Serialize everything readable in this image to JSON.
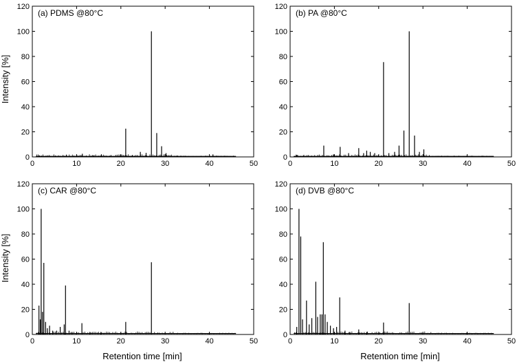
{
  "figure": {
    "x_axis_label": "Retention time [min]",
    "y_axis_label": "Intensity [%]"
  },
  "chart_data": [
    {
      "type": "line",
      "title": "(a) PDMS @80°C",
      "xlabel": "",
      "ylabel": "Intensity [%]",
      "xlim": [
        0,
        50
      ],
      "ylim": [
        0,
        120
      ],
      "xticks": [
        0,
        10,
        20,
        30,
        40,
        50
      ],
      "yticks": [
        0,
        20,
        40,
        60,
        80,
        100,
        120
      ],
      "trace_end": 46,
      "baseline": 0.5,
      "peaks": [
        {
          "x": 1.6,
          "y": 1.2
        },
        {
          "x": 5.3,
          "y": 0.8
        },
        {
          "x": 7.7,
          "y": 1.8
        },
        {
          "x": 11.3,
          "y": 2.5
        },
        {
          "x": 13.8,
          "y": 1.0
        },
        {
          "x": 15.6,
          "y": 2.1
        },
        {
          "x": 17.5,
          "y": 1.0
        },
        {
          "x": 19.9,
          "y": 1.4
        },
        {
          "x": 21.1,
          "y": 22.5
        },
        {
          "x": 22.6,
          "y": 1.5
        },
        {
          "x": 24.4,
          "y": 4.0
        },
        {
          "x": 25.7,
          "y": 3.2
        },
        {
          "x": 26.9,
          "y": 100
        },
        {
          "x": 28.1,
          "y": 19.0
        },
        {
          "x": 29.2,
          "y": 8.5
        },
        {
          "x": 30.2,
          "y": 3.0
        },
        {
          "x": 32.6,
          "y": 1.0
        },
        {
          "x": 40.8,
          "y": 2.0
        }
      ]
    },
    {
      "type": "line",
      "title": "(b) PA @80°C",
      "xlabel": "",
      "ylabel": "",
      "xlim": [
        0,
        50
      ],
      "ylim": [
        0,
        120
      ],
      "xticks": [
        0,
        10,
        20,
        30,
        40,
        50
      ],
      "yticks": [
        0,
        20,
        40,
        60,
        80,
        100,
        120
      ],
      "trace_end": 46,
      "baseline": 0.5,
      "peaks": [
        {
          "x": 1.5,
          "y": 1.5
        },
        {
          "x": 3.0,
          "y": 1.0
        },
        {
          "x": 7.6,
          "y": 9.0
        },
        {
          "x": 9.8,
          "y": 2.0
        },
        {
          "x": 11.3,
          "y": 8.0
        },
        {
          "x": 13.2,
          "y": 3.0
        },
        {
          "x": 15.5,
          "y": 7.0
        },
        {
          "x": 16.6,
          "y": 3.0
        },
        {
          "x": 17.3,
          "y": 5.0
        },
        {
          "x": 18.1,
          "y": 4.0
        },
        {
          "x": 19.1,
          "y": 3.0
        },
        {
          "x": 21.1,
          "y": 75.5
        },
        {
          "x": 22.3,
          "y": 3.0
        },
        {
          "x": 23.6,
          "y": 4.0
        },
        {
          "x": 24.6,
          "y": 9.0
        },
        {
          "x": 25.7,
          "y": 21.0
        },
        {
          "x": 26.9,
          "y": 100
        },
        {
          "x": 28.1,
          "y": 17.0
        },
        {
          "x": 29.2,
          "y": 4.0
        },
        {
          "x": 30.2,
          "y": 6.0
        }
      ]
    },
    {
      "type": "line",
      "title": "(c) CAR @80°C",
      "xlabel": "Retention time [min]",
      "ylabel": "Intensity [%]",
      "xlim": [
        0,
        50
      ],
      "ylim": [
        0,
        120
      ],
      "xticks": [
        0,
        10,
        20,
        30,
        40,
        50
      ],
      "yticks": [
        0,
        20,
        40,
        60,
        80,
        100,
        120
      ],
      "trace_end": 46,
      "baseline": 0.8,
      "peaks": [
        {
          "x": 1.5,
          "y": 23.0
        },
        {
          "x": 1.8,
          "y": 12.0
        },
        {
          "x": 2.0,
          "y": 100
        },
        {
          "x": 2.3,
          "y": 18.0
        },
        {
          "x": 2.6,
          "y": 57.0
        },
        {
          "x": 3.0,
          "y": 10.0
        },
        {
          "x": 3.4,
          "y": 5.0
        },
        {
          "x": 3.9,
          "y": 7.0
        },
        {
          "x": 4.6,
          "y": 3.0
        },
        {
          "x": 5.5,
          "y": 3.0
        },
        {
          "x": 6.3,
          "y": 6.0
        },
        {
          "x": 7.2,
          "y": 8.0
        },
        {
          "x": 7.5,
          "y": 39.0
        },
        {
          "x": 8.3,
          "y": 3.0
        },
        {
          "x": 9.0,
          "y": 2.0
        },
        {
          "x": 11.2,
          "y": 9.0
        },
        {
          "x": 13.0,
          "y": 2.0
        },
        {
          "x": 15.5,
          "y": 2.0
        },
        {
          "x": 21.1,
          "y": 10.0
        },
        {
          "x": 26.9,
          "y": 57.5
        }
      ]
    },
    {
      "type": "line",
      "title": "(d) DVB @80°C",
      "xlabel": "Retention time [min]",
      "ylabel": "",
      "xlim": [
        0,
        50
      ],
      "ylim": [
        0,
        120
      ],
      "xticks": [
        0,
        10,
        20,
        30,
        40,
        50
      ],
      "yticks": [
        0,
        20,
        40,
        60,
        80,
        100,
        120
      ],
      "trace_end": 46,
      "baseline": 0.8,
      "peaks": [
        {
          "x": 1.5,
          "y": 6.0
        },
        {
          "x": 2.0,
          "y": 100
        },
        {
          "x": 2.4,
          "y": 78.0
        },
        {
          "x": 2.8,
          "y": 12.0
        },
        {
          "x": 3.7,
          "y": 27.0
        },
        {
          "x": 4.3,
          "y": 8.0
        },
        {
          "x": 4.9,
          "y": 13.0
        },
        {
          "x": 5.8,
          "y": 42.0
        },
        {
          "x": 6.2,
          "y": 14.0
        },
        {
          "x": 6.8,
          "y": 16.0
        },
        {
          "x": 7.2,
          "y": 16.0
        },
        {
          "x": 7.5,
          "y": 73.5
        },
        {
          "x": 7.9,
          "y": 16.0
        },
        {
          "x": 8.4,
          "y": 10.0
        },
        {
          "x": 9.1,
          "y": 7.0
        },
        {
          "x": 9.8,
          "y": 5.0
        },
        {
          "x": 10.5,
          "y": 6.0
        },
        {
          "x": 11.2,
          "y": 29.5
        },
        {
          "x": 12.4,
          "y": 3.0
        },
        {
          "x": 13.5,
          "y": 2.0
        },
        {
          "x": 15.5,
          "y": 4.0
        },
        {
          "x": 17.3,
          "y": 2.0
        },
        {
          "x": 21.1,
          "y": 9.5
        },
        {
          "x": 26.9,
          "y": 25.0
        },
        {
          "x": 30.0,
          "y": 1.0
        }
      ]
    }
  ]
}
